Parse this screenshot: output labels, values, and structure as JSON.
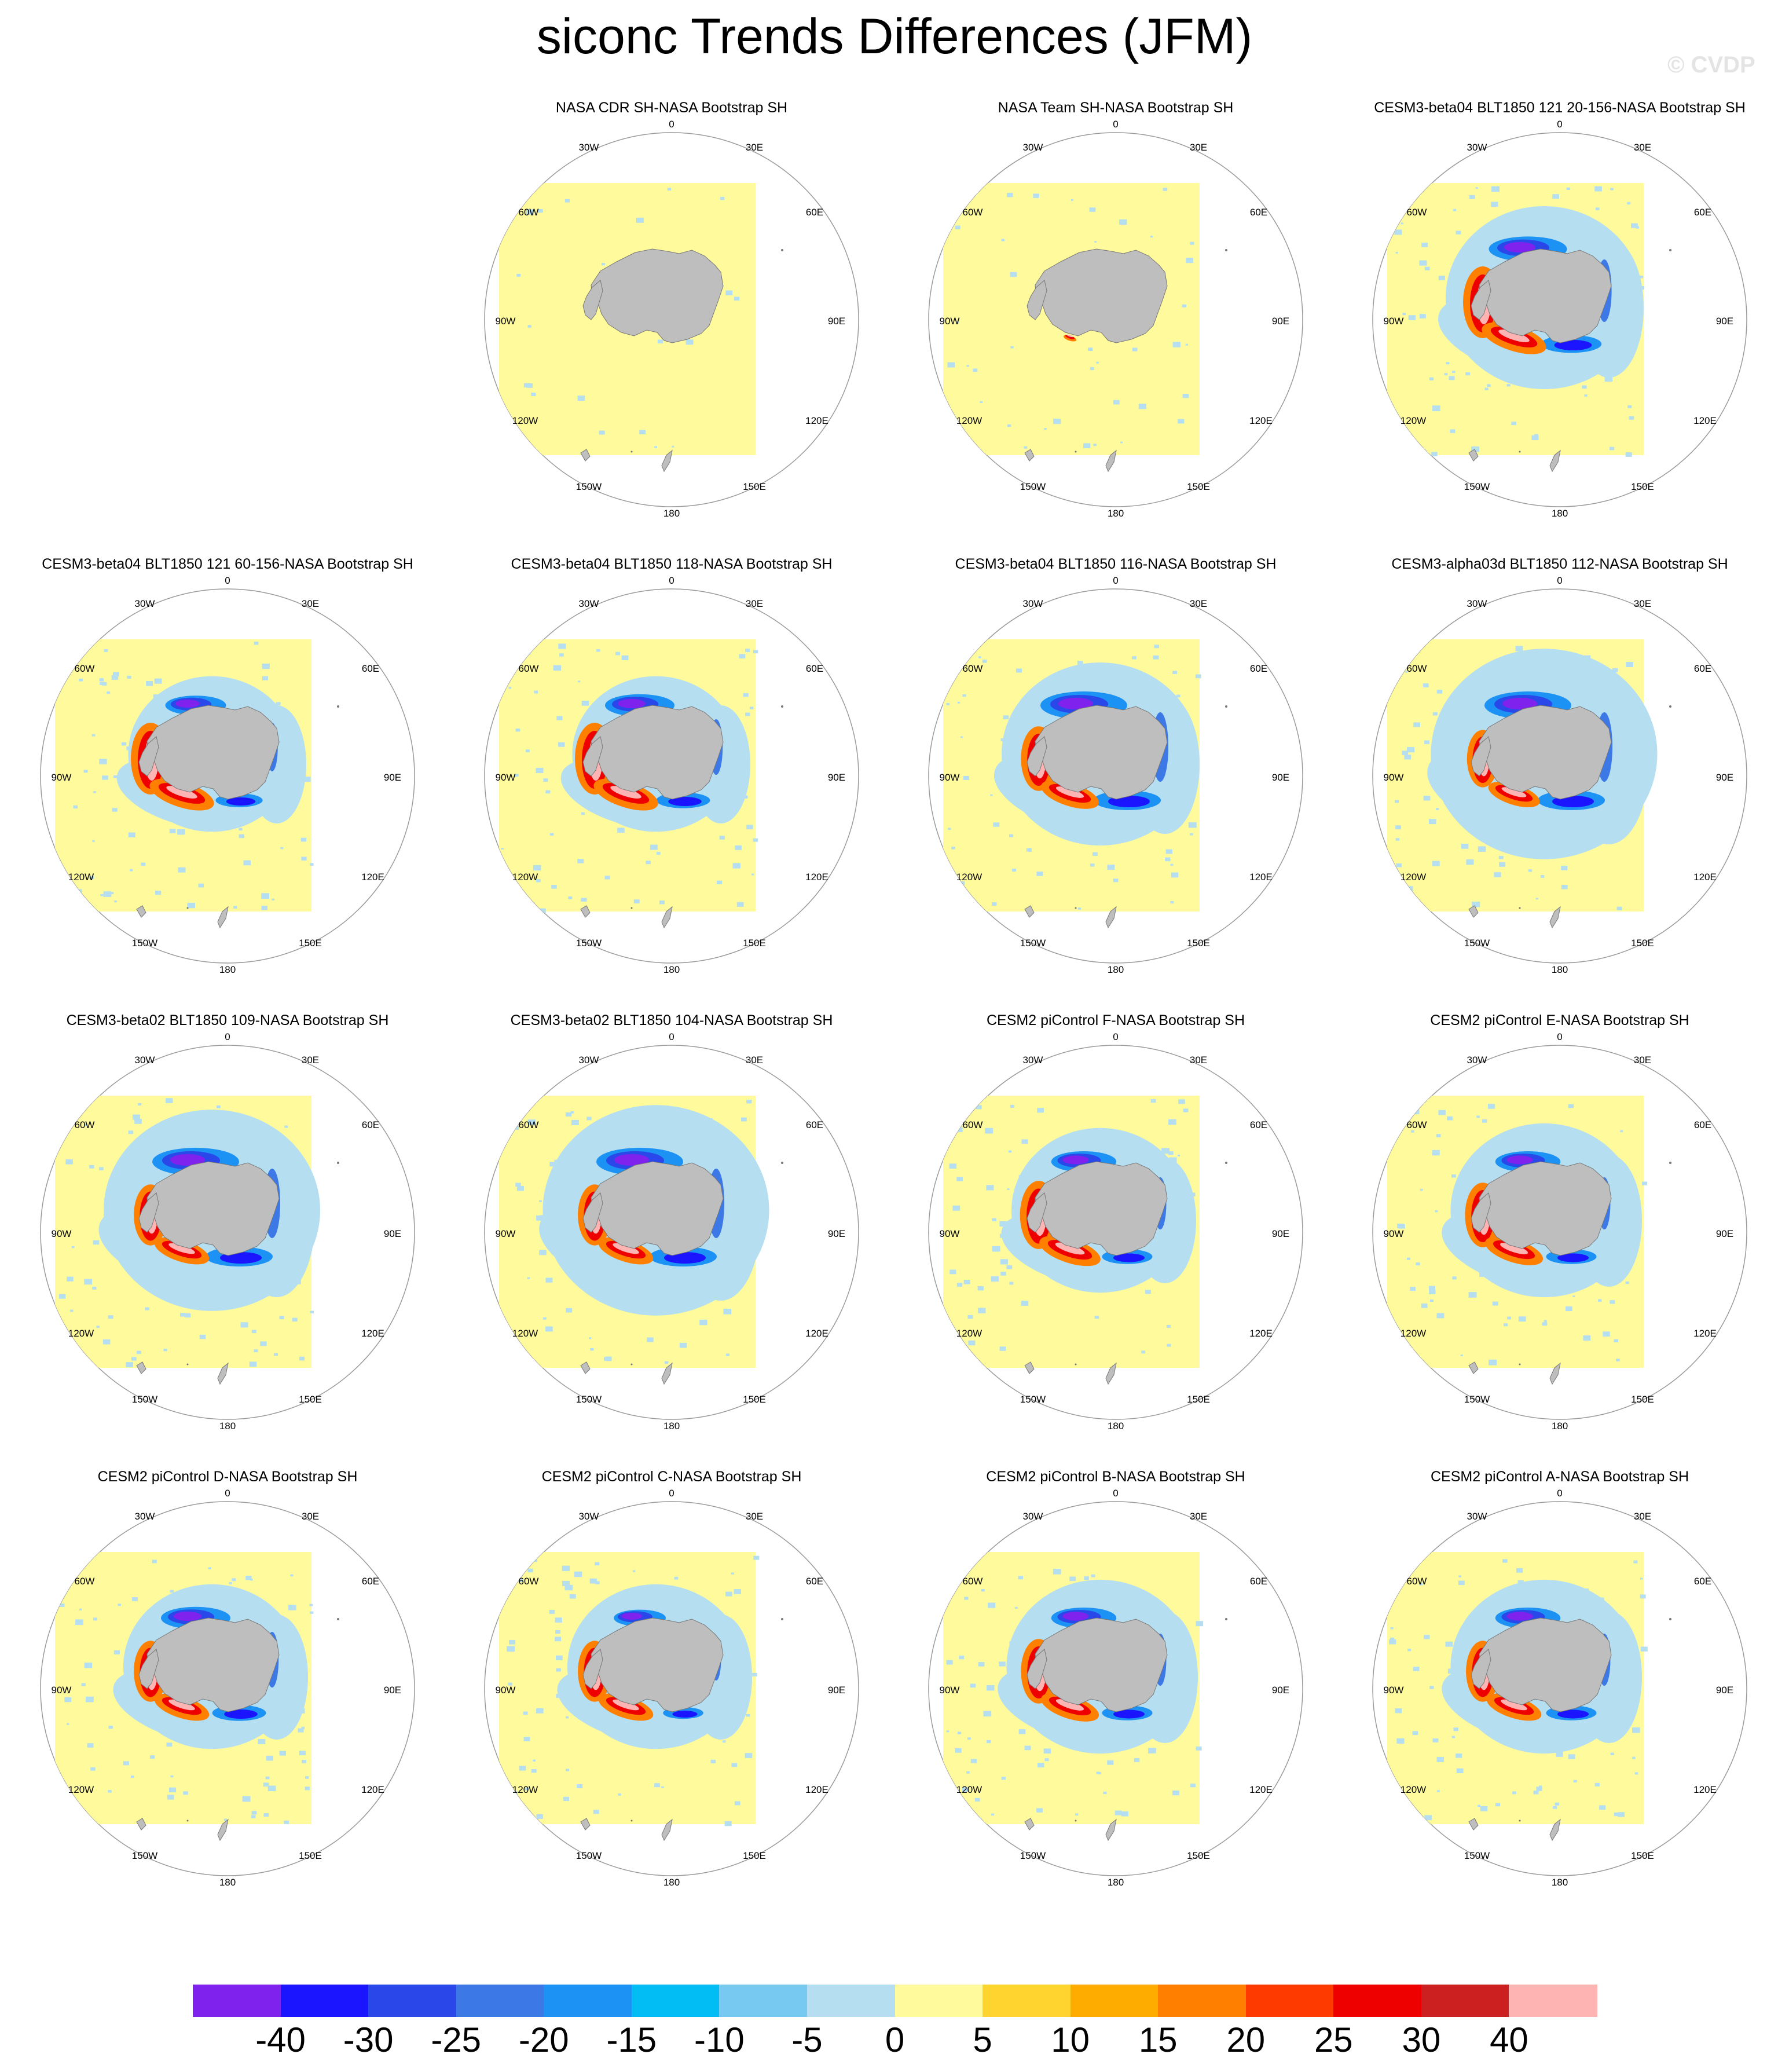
{
  "title": "siconc Trends Differences (JFM)",
  "watermark": "© CVDP",
  "longitude_labels": {
    "top": "0",
    "bottom": "180",
    "ne1": "30E",
    "ne2": "60E",
    "east": "90E",
    "se1": "120E",
    "se2": "150E",
    "nw1": "30W",
    "nw2": "60W",
    "west": "90W",
    "sw1": "120W",
    "sw2": "150W"
  },
  "colors": {
    "land": "#bebebe",
    "frame": "#9a9a9a",
    "background": "#ffffff",
    "levels": [
      "#7f22ee",
      "#1a14ff",
      "#2a47ea",
      "#3c78e6",
      "#1c92f4",
      "#02bdf4",
      "#77c9f1",
      "#b5def0",
      "#fffa9b",
      "#ffd42e",
      "#ffac00",
      "#ff7f00",
      "#ff3a00",
      "#ee0000",
      "#cc2020",
      "#ffb4b4"
    ]
  },
  "colorbar_labels": [
    "-40",
    "-30",
    "-25",
    "-20",
    "-15",
    "-10",
    "-5",
    "0",
    "5",
    "10",
    "15",
    "20",
    "25",
    "30",
    "40"
  ],
  "panels": [
    {
      "title": "NASA CDR SH-NASA Bootstrap SH",
      "halo": 0,
      "blue": 0,
      "red": 0,
      "speckle": 0.08
    },
    {
      "title": "NASA Team SH-NASA Bootstrap SH",
      "halo": 0,
      "blue": 0,
      "red": 0.2,
      "speckle": 0.18
    },
    {
      "title": "CESM3-beta04 BLT1850 121 20-156-NASA Bootstrap SH",
      "halo": 1,
      "blue": 0.9,
      "red": 1,
      "speckle": 0.3
    },
    {
      "title": "CESM3-beta04 BLT1850 121 60-156-NASA Bootstrap SH",
      "halo": 0.85,
      "blue": 0.7,
      "red": 1,
      "speckle": 0.3
    },
    {
      "title": "CESM3-beta04 BLT1850 118-NASA Bootstrap SH",
      "halo": 0.85,
      "blue": 0.8,
      "red": 1,
      "speckle": 0.3
    },
    {
      "title": "CESM3-beta04 BLT1850 116-NASA Bootstrap SH",
      "halo": 1,
      "blue": 1,
      "red": 0.9,
      "speckle": 0.3
    },
    {
      "title": "CESM3-alpha03d BLT1850 112-NASA Bootstrap SH",
      "halo": 1.15,
      "blue": 1,
      "red": 0.8,
      "speckle": 0.3
    },
    {
      "title": "CESM3-beta02 BLT1850 109-NASA Bootstrap SH",
      "halo": 1.1,
      "blue": 1,
      "red": 0.85,
      "speckle": 0.3
    },
    {
      "title": "CESM3-beta02 BLT1850 104-NASA Bootstrap SH",
      "halo": 1.15,
      "blue": 1,
      "red": 0.85,
      "speckle": 0.3
    },
    {
      "title": "CESM2 piControl F-NASA Bootstrap SH",
      "halo": 0.9,
      "blue": 0.75,
      "red": 0.95,
      "speckle": 0.3
    },
    {
      "title": "CESM2 piControl E-NASA Bootstrap SH",
      "halo": 0.95,
      "blue": 0.75,
      "red": 0.9,
      "speckle": 0.3
    },
    {
      "title": "CESM2 piControl D-NASA Bootstrap SH",
      "halo": 0.9,
      "blue": 0.8,
      "red": 0.85,
      "speckle": 0.3
    },
    {
      "title": "CESM2 piControl C-NASA Bootstrap SH",
      "halo": 0.9,
      "blue": 0.6,
      "red": 0.85,
      "speckle": 0.3
    },
    {
      "title": "CESM2 piControl B-NASA Bootstrap SH",
      "halo": 0.95,
      "blue": 0.75,
      "red": 0.9,
      "speckle": 0.3
    },
    {
      "title": "CESM2 piControl A-NASA Bootstrap SH",
      "halo": 0.95,
      "blue": 0.75,
      "red": 0.85,
      "speckle": 0.3
    }
  ]
}
